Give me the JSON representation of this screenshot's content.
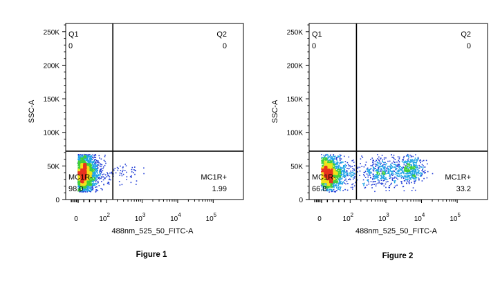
{
  "chart_data": [
    {
      "type": "scatter",
      "title": "Figure 1",
      "xlabel": "488nm_525_50_FITC-A",
      "ylabel": "SSC-A",
      "x_scale": "biexponential",
      "x_ticks": [
        {
          "value": 0,
          "base": "0",
          "exp": ""
        },
        {
          "value": 100,
          "base": "10",
          "exp": "2"
        },
        {
          "value": 1000,
          "base": "10",
          "exp": "3"
        },
        {
          "value": 10000,
          "base": "10",
          "exp": "4"
        },
        {
          "value": 100000,
          "base": "10",
          "exp": "5"
        }
      ],
      "y_ticks": [
        {
          "value": 0,
          "label": "0"
        },
        {
          "value": 50000,
          "label": "50K"
        },
        {
          "value": 100000,
          "label": "100K"
        },
        {
          "value": 150000,
          "label": "150K"
        },
        {
          "value": 200000,
          "label": "200K"
        },
        {
          "value": 250000,
          "label": "250K"
        }
      ],
      "ylim": [
        0,
        262144
      ],
      "gate": {
        "x": 150,
        "y": 72000
      },
      "quadrants": [
        {
          "name": "Q1",
          "value": "0",
          "position": "top-left"
        },
        {
          "name": "Q2",
          "value": "0",
          "position": "top-right"
        },
        {
          "name": "MC1R-",
          "value": "98.0",
          "position": "bottom-left"
        },
        {
          "name": "MC1R+",
          "value": "1.99",
          "position": "bottom-right"
        }
      ],
      "populations": [
        {
          "x_center": 40,
          "x_spread": 0.18,
          "y_center": 40000,
          "y_spread": 13000,
          "fraction": 0.98
        },
        {
          "x_center": 260,
          "x_spread": 0.25,
          "y_center": 40000,
          "y_spread": 9000,
          "fraction": 0.02
        }
      ]
    },
    {
      "type": "scatter",
      "title": "Figure 2",
      "xlabel": "488nm_525_50_FITC-A",
      "ylabel": "SSC-A",
      "x_scale": "biexponential",
      "x_ticks": [
        {
          "value": 0,
          "base": "0",
          "exp": ""
        },
        {
          "value": 100,
          "base": "10",
          "exp": "2"
        },
        {
          "value": 1000,
          "base": "10",
          "exp": "3"
        },
        {
          "value": 10000,
          "base": "10",
          "exp": "4"
        },
        {
          "value": 100000,
          "base": "10",
          "exp": "5"
        }
      ],
      "y_ticks": [
        {
          "value": 0,
          "label": "0"
        },
        {
          "value": 50000,
          "label": "50K"
        },
        {
          "value": 100000,
          "label": "100K"
        },
        {
          "value": 150000,
          "label": "150K"
        },
        {
          "value": 200000,
          "label": "200K"
        },
        {
          "value": 250000,
          "label": "250K"
        }
      ],
      "ylim": [
        0,
        262144
      ],
      "gate": {
        "x": 150,
        "y": 72000
      },
      "quadrants": [
        {
          "name": "Q1",
          "value": "0",
          "position": "top-left"
        },
        {
          "name": "Q2",
          "value": "0",
          "position": "top-right"
        },
        {
          "name": "MC1R-",
          "value": "66.8",
          "position": "bottom-left"
        },
        {
          "name": "MC1R+",
          "value": "33.2",
          "position": "bottom-right"
        }
      ],
      "populations": [
        {
          "x_center": 45,
          "x_spread": 0.2,
          "y_center": 40000,
          "y_spread": 12000,
          "fraction": 0.67
        },
        {
          "x_center": 800,
          "x_spread": 0.3,
          "y_center": 42000,
          "y_spread": 11000,
          "fraction": 0.17
        },
        {
          "x_center": 5000,
          "x_spread": 0.18,
          "y_center": 45000,
          "y_spread": 10000,
          "fraction": 0.16
        }
      ]
    }
  ],
  "colors": {
    "axis": "#000000",
    "gate": "#000000",
    "density_low": "#1f3bd6",
    "density_mid1": "#1fa4e6",
    "density_mid2": "#3fd03a",
    "density_mid3": "#f2e11a",
    "density_high": "#e8321e"
  }
}
